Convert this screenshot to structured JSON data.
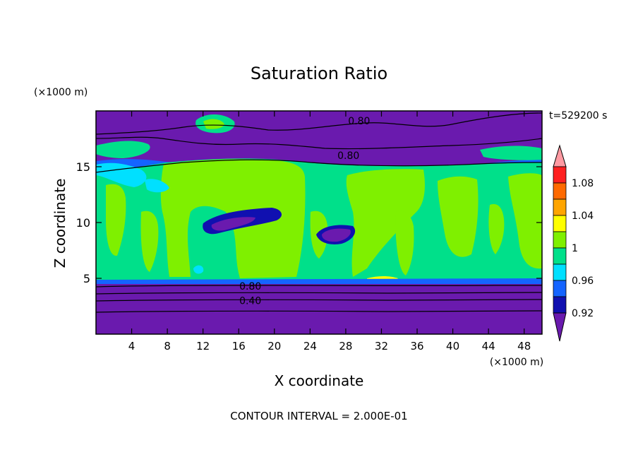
{
  "chart_data": {
    "type": "contour",
    "title": "Saturation Ratio",
    "xlabel": "X coordinate",
    "ylabel": "Z coordinate",
    "x_unit": "(×1000 m)",
    "y_unit": "(×1000 m)",
    "time_label": "t=529200 s",
    "footer": "CONTOUR INTERVAL = 2.000E-01",
    "xlim": [
      0,
      50
    ],
    "ylim": [
      0,
      20
    ],
    "x_ticks": [
      4,
      8,
      12,
      16,
      20,
      24,
      28,
      32,
      36,
      40,
      44,
      48
    ],
    "y_ticks": [
      5,
      10,
      15
    ],
    "contour_labels": [
      {
        "text": "0.80",
        "x": 29.5,
        "y": 19.1
      },
      {
        "text": "0.80",
        "x": 28.3,
        "y": 16.0
      },
      {
        "text": "0.80",
        "x": 17.3,
        "y": 4.3
      },
      {
        "text": "0.40",
        "x": 17.3,
        "y": 3.0
      }
    ],
    "colorbar": {
      "labels": [
        "1.08",
        "1.04",
        "1",
        "0.96",
        "0.92"
      ],
      "colors": [
        "#ff9aa2",
        "#ff2020",
        "#ff6a00",
        "#ffa500",
        "#ffff00",
        "#7ff000",
        "#00e08a",
        "#00e0ff",
        "#1464ff",
        "#1010b0",
        "#6a1aae"
      ]
    },
    "colors": {
      "background_purple": "#6a1aae",
      "green_100": "#00e08a",
      "yellow_green": "#7ff000",
      "cyan": "#00e0ff",
      "blue": "#1464ff",
      "dark_blue": "#1010b0"
    }
  }
}
